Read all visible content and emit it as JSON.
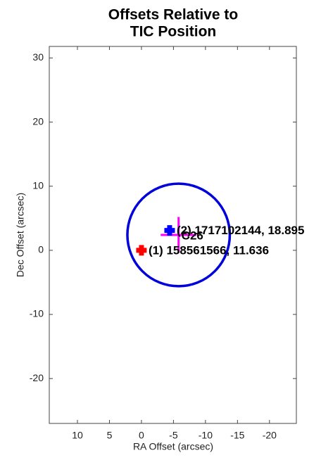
{
  "chart_data": {
    "type": "scatter",
    "title": [
      "Offsets Relative to",
      "TIC Position"
    ],
    "xlabel": "RA Offset (arcsec)",
    "ylabel": "Dec Offset (arcsec)",
    "xlim": [
      14.4,
      -24.2
    ],
    "ylim": [
      -27,
      31.8
    ],
    "xticks": [
      10,
      5,
      0,
      -5,
      -10,
      -15,
      -20
    ],
    "yticks": [
      30,
      20,
      10,
      0,
      -10,
      -20
    ],
    "grid": false,
    "series": [
      {
        "name": "(1) 158561566, 11.636",
        "color": "#ff0000",
        "x": [
          0
        ],
        "y": [
          0
        ]
      },
      {
        "name": "(2) 1717102144, 18.895",
        "color": "#0000ff",
        "x": [
          -4.4
        ],
        "y": [
          3.1
        ]
      }
    ],
    "centroid": {
      "name": "C26",
      "color": "#ff00ff",
      "x": -5.8,
      "y": 2.4,
      "error_x": 2.8,
      "error_y": 2.8
    },
    "circle": {
      "color": "#0000dd",
      "x": -5.8,
      "y": 2.4,
      "radius": 8
    }
  }
}
